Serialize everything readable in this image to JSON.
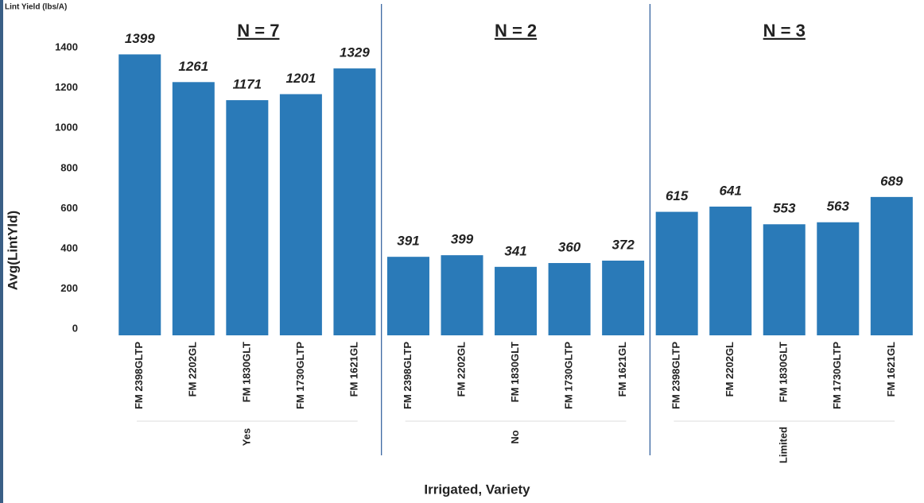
{
  "chart_data": {
    "type": "bar",
    "title": "Lint Yield (lbs/A)",
    "y_label": "Avg(LintYld)",
    "x_label": "Irrigated, Variety",
    "color": "#2a7ab8",
    "ylim": [
      0,
      1650
    ],
    "yticks": [
      0,
      200,
      400,
      600,
      800,
      1000,
      1200,
      1400
    ],
    "grid": false,
    "groups": [
      {
        "name": "Yes",
        "annotation": "N = 7",
        "categories": [
          "FM 2398GLTP",
          "FM 2202GL",
          "FM 1830GLT",
          "FM 1730GLTP",
          "FM 1621GL"
        ],
        "values": [
          1399,
          1261,
          1171,
          1201,
          1329
        ]
      },
      {
        "name": "No",
        "annotation": "N = 2",
        "categories": [
          "FM 2398GLTP",
          "FM 2202GL",
          "FM 1830GLT",
          "FM 1730GLTP",
          "FM 1621GL"
        ],
        "values": [
          391,
          399,
          341,
          360,
          372
        ]
      },
      {
        "name": "Limited",
        "annotation": "N = 3",
        "categories": [
          "FM 2398GLTP",
          "FM 2202GL",
          "FM 1830GLT",
          "FM 1730GLTP",
          "FM 1621GL"
        ],
        "values": [
          615,
          641,
          553,
          563,
          689
        ]
      }
    ]
  }
}
